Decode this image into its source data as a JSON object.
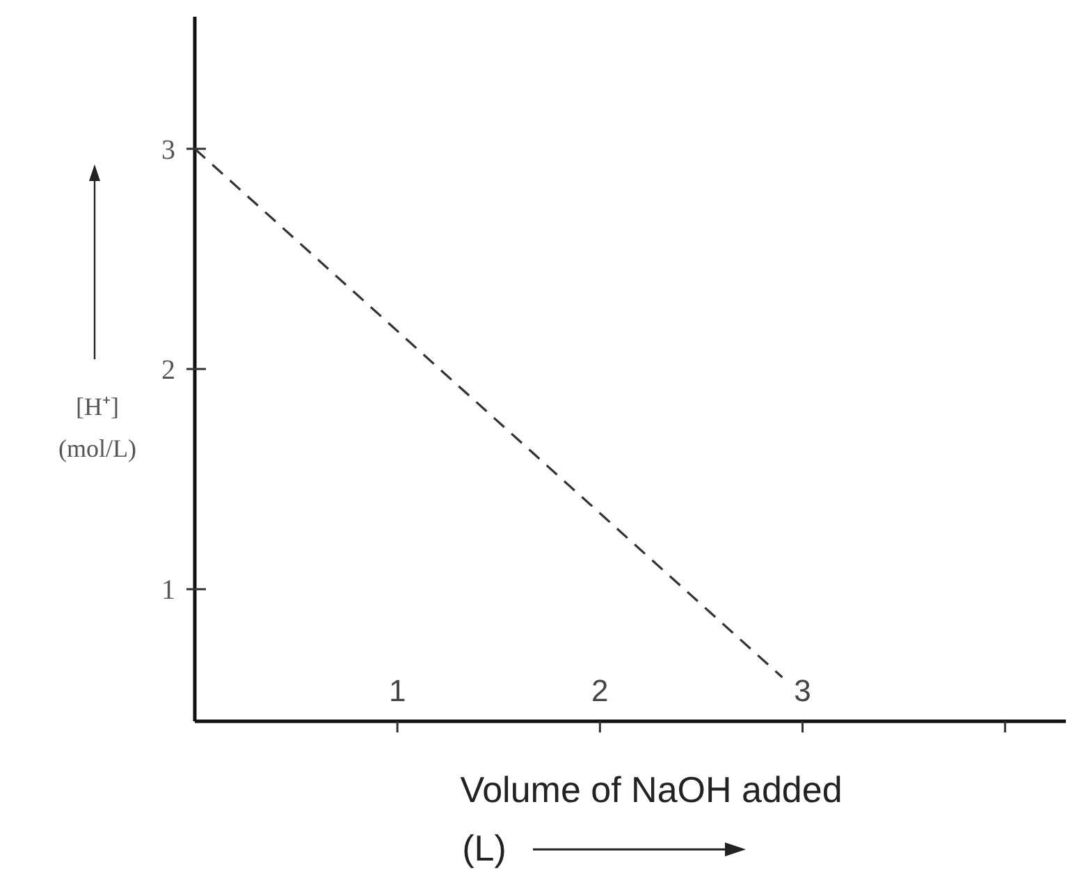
{
  "chart_data": {
    "type": "line",
    "xlabel": "Volume of NaOH added\n(L)",
    "ylabel": "[H⁺]\n(mol/L)",
    "x": [
      0,
      2.9
    ],
    "series": [
      {
        "color": "#333333",
        "values": [
          3,
          0.6
        ]
      }
    ],
    "xlim": [
      0,
      4.3
    ],
    "ylim": [
      0.4,
      3.6
    ],
    "xticks": [
      1,
      2,
      3,
      {
        "value": 4,
        "label": null
      }
    ],
    "yticks": [
      1,
      2,
      3
    ],
    "line_style": "dashed",
    "marker": "none"
  }
}
